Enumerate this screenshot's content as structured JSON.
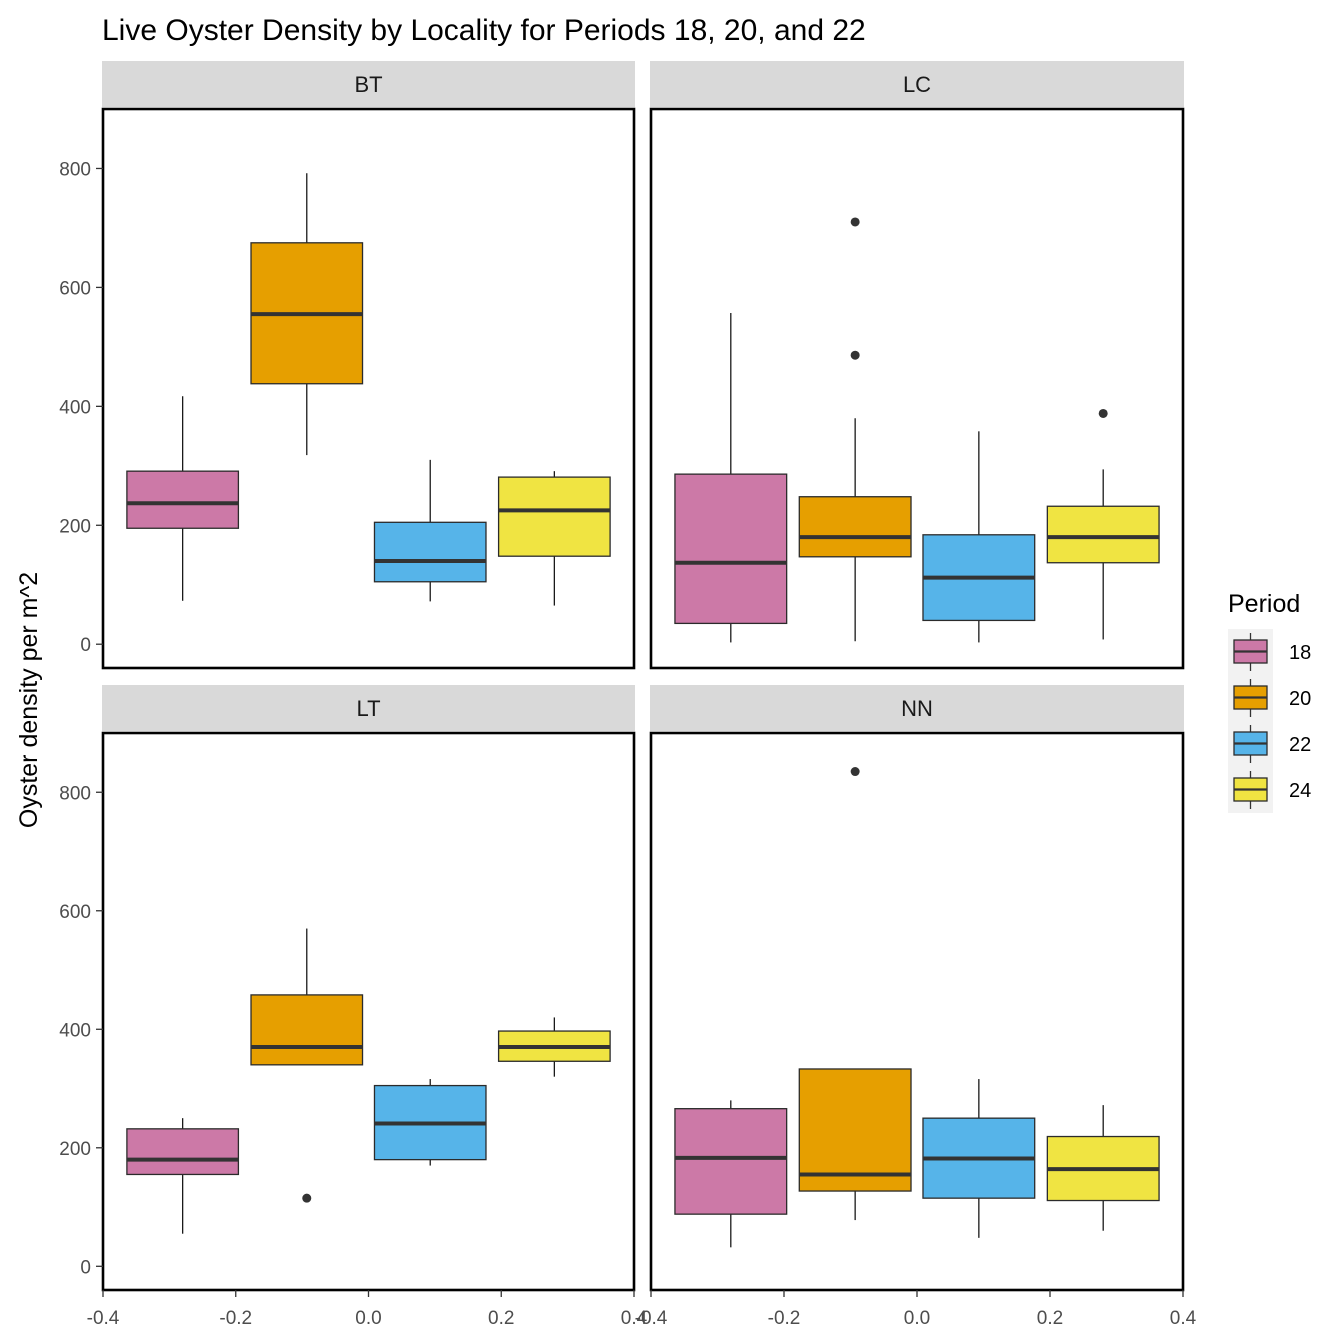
{
  "chart_data": {
    "type": "boxplot",
    "title": "Live Oyster Density by Locality for Periods 18, 20, and 22",
    "ylabel": "Oyster density per m^2",
    "xlabel": "",
    "ylim": [
      -40,
      900
    ],
    "xlim": [
      -0.4,
      0.4
    ],
    "y_ticks": [
      0,
      200,
      400,
      600,
      800
    ],
    "x_ticks": [
      -0.4,
      -0.2,
      0.0,
      0.2,
      0.4
    ],
    "x_tick_labels": [
      "-0.4",
      "-0.2",
      "0.0",
      "0.2",
      "0.4"
    ],
    "legend": {
      "title": "Period",
      "position": "right",
      "items": [
        {
          "label": "18",
          "color": "#CC79A7"
        },
        {
          "label": "20",
          "color": "#E69F00"
        },
        {
          "label": "22",
          "color": "#56B4E9"
        },
        {
          "label": "24",
          "color": "#F0E442"
        }
      ]
    },
    "panels": [
      {
        "name": "BT",
        "boxes": [
          {
            "period": "18",
            "x": -0.28,
            "min": 73,
            "q1": 195,
            "median": 237,
            "q3": 291,
            "max": 417,
            "outliers": []
          },
          {
            "period": "20",
            "x": -0.093,
            "min": 318,
            "q1": 438,
            "median": 555,
            "q3": 675,
            "max": 792,
            "outliers": []
          },
          {
            "period": "22",
            "x": 0.093,
            "min": 72,
            "q1": 105,
            "median": 140,
            "q3": 205,
            "max": 310,
            "outliers": []
          },
          {
            "period": "24",
            "x": 0.28,
            "min": 65,
            "q1": 148,
            "median": 225,
            "q3": 281,
            "max": 291,
            "outliers": []
          }
        ]
      },
      {
        "name": "LC",
        "boxes": [
          {
            "period": "18",
            "x": -0.28,
            "min": 3,
            "q1": 35,
            "median": 137,
            "q3": 286,
            "max": 557,
            "outliers": []
          },
          {
            "period": "20",
            "x": -0.093,
            "min": 5,
            "q1": 147,
            "median": 180,
            "q3": 248,
            "max": 380,
            "outliers": [
              486,
              710
            ]
          },
          {
            "period": "22",
            "x": 0.093,
            "min": 3,
            "q1": 40,
            "median": 112,
            "q3": 184,
            "max": 358,
            "outliers": []
          },
          {
            "period": "24",
            "x": 0.28,
            "min": 8,
            "q1": 137,
            "median": 180,
            "q3": 232,
            "max": 294,
            "outliers": [
              388
            ]
          }
        ]
      },
      {
        "name": "LT",
        "boxes": [
          {
            "period": "18",
            "x": -0.28,
            "min": 55,
            "q1": 155,
            "median": 180,
            "q3": 232,
            "max": 250,
            "outliers": []
          },
          {
            "period": "20",
            "x": -0.093,
            "min": 340,
            "q1": 340,
            "median": 370,
            "q3": 458,
            "max": 570,
            "outliers": [
              115
            ]
          },
          {
            "period": "22",
            "x": 0.093,
            "min": 170,
            "q1": 180,
            "median": 241,
            "q3": 305,
            "max": 316,
            "outliers": []
          },
          {
            "period": "24",
            "x": 0.28,
            "min": 320,
            "q1": 346,
            "median": 370,
            "q3": 397,
            "max": 420,
            "outliers": []
          }
        ]
      },
      {
        "name": "NN",
        "boxes": [
          {
            "period": "18",
            "x": -0.28,
            "min": 32,
            "q1": 88,
            "median": 183,
            "q3": 266,
            "max": 280,
            "outliers": []
          },
          {
            "period": "20",
            "x": -0.093,
            "min": 78,
            "q1": 127,
            "median": 155,
            "q3": 333,
            "max": 333,
            "outliers": [
              835
            ]
          },
          {
            "period": "22",
            "x": 0.093,
            "min": 48,
            "q1": 115,
            "median": 182,
            "q3": 250,
            "max": 316,
            "outliers": []
          },
          {
            "period": "24",
            "x": 0.28,
            "min": 60,
            "q1": 111,
            "median": 164,
            "q3": 219,
            "max": 272,
            "outliers": []
          }
        ]
      }
    ]
  }
}
